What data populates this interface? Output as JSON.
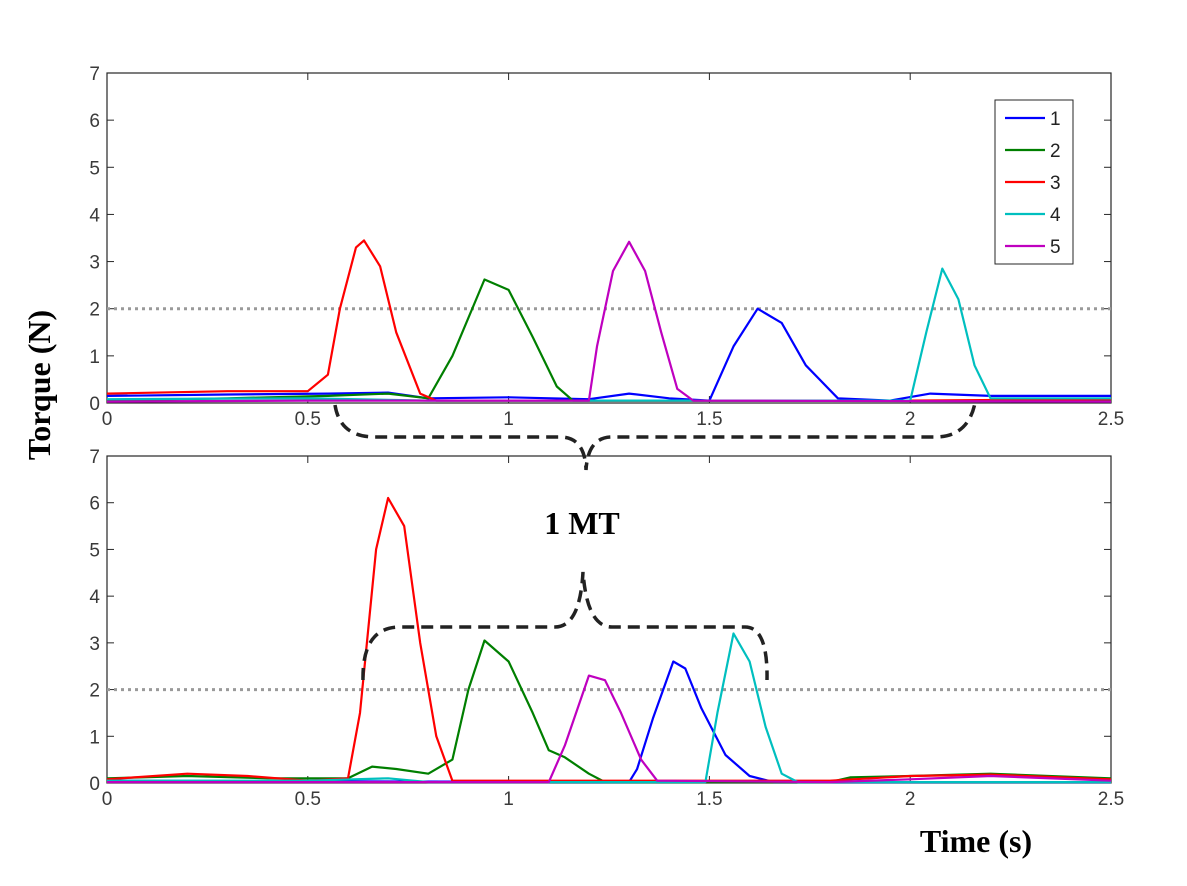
{
  "chart_data": [
    {
      "type": "line",
      "panel": "top",
      "xlim": [
        0,
        2.5
      ],
      "ylim": [
        0,
        7
      ],
      "xticks": [
        "0",
        "0.5",
        "1",
        "1.5",
        "2",
        "2.5"
      ],
      "yticks": [
        "0",
        "1",
        "2",
        "3",
        "4",
        "5",
        "6",
        "7"
      ],
      "threshold": 2,
      "legend": {
        "position": "top-right",
        "entries": [
          "1",
          "2",
          "3",
          "4",
          "5"
        ]
      },
      "series": [
        {
          "name": "1",
          "color": "#0000ff",
          "points": [
            [
              0,
              0.15
            ],
            [
              0.3,
              0.18
            ],
            [
              0.55,
              0.2
            ],
            [
              0.7,
              0.22
            ],
            [
              0.8,
              0.1
            ],
            [
              1.0,
              0.12
            ],
            [
              1.2,
              0.08
            ],
            [
              1.3,
              0.2
            ],
            [
              1.4,
              0.1
            ],
            [
              1.5,
              0.05
            ],
            [
              1.56,
              1.2
            ],
            [
              1.62,
              2.0
            ],
            [
              1.68,
              1.7
            ],
            [
              1.74,
              0.8
            ],
            [
              1.82,
              0.1
            ],
            [
              1.95,
              0.05
            ],
            [
              2.05,
              0.2
            ],
            [
              2.2,
              0.15
            ],
            [
              2.5,
              0.15
            ]
          ]
        },
        {
          "name": "2",
          "color": "#007f00",
          "points": [
            [
              0,
              0.05
            ],
            [
              0.3,
              0.1
            ],
            [
              0.55,
              0.15
            ],
            [
              0.7,
              0.2
            ],
            [
              0.8,
              0.1
            ],
            [
              0.86,
              1.0
            ],
            [
              0.94,
              2.62
            ],
            [
              1.0,
              2.4
            ],
            [
              1.06,
              1.4
            ],
            [
              1.12,
              0.35
            ],
            [
              1.16,
              0.05
            ],
            [
              1.3,
              0.05
            ],
            [
              2.0,
              0.05
            ],
            [
              2.5,
              0.05
            ]
          ]
        },
        {
          "name": "3",
          "color": "#ff0000",
          "points": [
            [
              0,
              0.2
            ],
            [
              0.3,
              0.25
            ],
            [
              0.5,
              0.25
            ],
            [
              0.55,
              0.6
            ],
            [
              0.58,
              2.0
            ],
            [
              0.62,
              3.3
            ],
            [
              0.64,
              3.45
            ],
            [
              0.68,
              2.9
            ],
            [
              0.72,
              1.5
            ],
            [
              0.78,
              0.2
            ],
            [
              0.82,
              0.05
            ],
            [
              1.0,
              0.05
            ],
            [
              2.0,
              0.05
            ],
            [
              2.5,
              0.08
            ]
          ]
        },
        {
          "name": "4",
          "color": "#00bfbf",
          "points": [
            [
              0,
              0.08
            ],
            [
              0.5,
              0.1
            ],
            [
              0.8,
              0.05
            ],
            [
              1.5,
              0.05
            ],
            [
              2.0,
              0.05
            ],
            [
              2.04,
              1.5
            ],
            [
              2.08,
              2.85
            ],
            [
              2.12,
              2.2
            ],
            [
              2.16,
              0.8
            ],
            [
              2.2,
              0.1
            ],
            [
              2.5,
              0.1
            ]
          ]
        },
        {
          "name": "5",
          "color": "#bf00bf",
          "points": [
            [
              0,
              0.03
            ],
            [
              0.5,
              0.05
            ],
            [
              1.0,
              0.05
            ],
            [
              1.2,
              0.05
            ],
            [
              1.22,
              1.2
            ],
            [
              1.26,
              2.8
            ],
            [
              1.3,
              3.42
            ],
            [
              1.34,
              2.8
            ],
            [
              1.38,
              1.5
            ],
            [
              1.42,
              0.3
            ],
            [
              1.46,
              0.05
            ],
            [
              2.5,
              0.03
            ]
          ]
        }
      ]
    },
    {
      "type": "line",
      "panel": "bottom",
      "xlim": [
        0,
        2.5
      ],
      "ylim": [
        0,
        7
      ],
      "xticks": [
        "0",
        "0.5",
        "1",
        "1.5",
        "2",
        "2.5"
      ],
      "yticks": [
        "0",
        "1",
        "2",
        "3",
        "4",
        "5",
        "6",
        "7"
      ],
      "threshold": 2,
      "series": [
        {
          "name": "1",
          "color": "#0000ff",
          "points": [
            [
              0,
              0.05
            ],
            [
              1.3,
              0.02
            ],
            [
              1.32,
              0.3
            ],
            [
              1.36,
              1.4
            ],
            [
              1.41,
              2.6
            ],
            [
              1.44,
              2.45
            ],
            [
              1.48,
              1.6
            ],
            [
              1.54,
              0.6
            ],
            [
              1.6,
              0.15
            ],
            [
              1.66,
              0.02
            ],
            [
              2.5,
              0.02
            ]
          ]
        },
        {
          "name": "2",
          "color": "#007f00",
          "points": [
            [
              0,
              0.1
            ],
            [
              0.2,
              0.15
            ],
            [
              0.4,
              0.1
            ],
            [
              0.6,
              0.1
            ],
            [
              0.66,
              0.35
            ],
            [
              0.72,
              0.3
            ],
            [
              0.8,
              0.2
            ],
            [
              0.86,
              0.5
            ],
            [
              0.9,
              2.0
            ],
            [
              0.94,
              3.05
            ],
            [
              1.0,
              2.6
            ],
            [
              1.06,
              1.5
            ],
            [
              1.1,
              0.7
            ],
            [
              1.14,
              0.55
            ],
            [
              1.2,
              0.2
            ],
            [
              1.24,
              0.02
            ],
            [
              1.8,
              0.02
            ],
            [
              1.85,
              0.12
            ],
            [
              2.0,
              0.15
            ],
            [
              2.2,
              0.2
            ],
            [
              2.5,
              0.1
            ]
          ]
        },
        {
          "name": "3",
          "color": "#ff0000",
          "points": [
            [
              0,
              0.08
            ],
            [
              0.2,
              0.2
            ],
            [
              0.35,
              0.15
            ],
            [
              0.5,
              0.05
            ],
            [
              0.6,
              0.1
            ],
            [
              0.63,
              1.5
            ],
            [
              0.67,
              5.0
            ],
            [
              0.7,
              6.1
            ],
            [
              0.74,
              5.5
            ],
            [
              0.78,
              3.0
            ],
            [
              0.82,
              1.0
            ],
            [
              0.86,
              0.05
            ],
            [
              1.8,
              0.05
            ],
            [
              2.0,
              0.15
            ],
            [
              2.2,
              0.18
            ],
            [
              2.5,
              0.08
            ]
          ]
        },
        {
          "name": "4",
          "color": "#00bfbf",
          "points": [
            [
              0,
              0.05
            ],
            [
              0.5,
              0.05
            ],
            [
              0.7,
              0.1
            ],
            [
              0.8,
              0.02
            ],
            [
              1.49,
              0.02
            ],
            [
              1.52,
              1.5
            ],
            [
              1.56,
              3.2
            ],
            [
              1.6,
              2.6
            ],
            [
              1.64,
              1.2
            ],
            [
              1.68,
              0.2
            ],
            [
              1.72,
              0.02
            ],
            [
              2.5,
              0.02
            ]
          ]
        },
        {
          "name": "5",
          "color": "#bf00bf",
          "points": [
            [
              0,
              0.02
            ],
            [
              0.8,
              0.02
            ],
            [
              1.1,
              0.02
            ],
            [
              1.14,
              0.8
            ],
            [
              1.2,
              2.3
            ],
            [
              1.24,
              2.2
            ],
            [
              1.28,
              1.5
            ],
            [
              1.33,
              0.5
            ],
            [
              1.37,
              0.05
            ],
            [
              1.8,
              0.02
            ],
            [
              2.0,
              0.08
            ],
            [
              2.2,
              0.15
            ],
            [
              2.5,
              0.05
            ]
          ]
        }
      ]
    }
  ],
  "labels": {
    "ylabel": "Torque (N)",
    "xlabel": "Time (s)",
    "annotation": "1 MT"
  }
}
